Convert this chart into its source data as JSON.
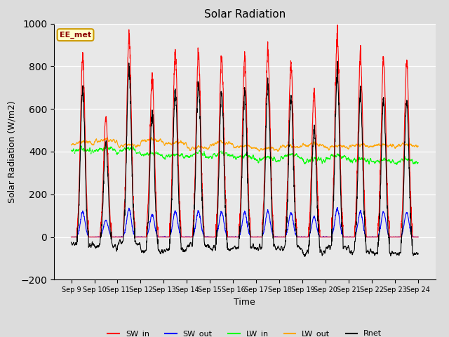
{
  "title": "Solar Radiation",
  "xlabel": "Time",
  "ylabel": "Solar Radiation (W/m2)",
  "ylim": [
    -200,
    1000
  ],
  "yticks": [
    -200,
    0,
    200,
    400,
    600,
    800,
    1000
  ],
  "legend_labels": [
    "SW_in",
    "SW_out",
    "LW_in",
    "LW_out",
    "Rnet"
  ],
  "legend_colors": [
    "red",
    "blue",
    "lime",
    "orange",
    "black"
  ],
  "annotation_text": "EE_met",
  "xtick_labels": [
    "Sep 9",
    "Sep 10",
    "Sep 11",
    "Sep 12",
    "Sep 13",
    "Sep 14",
    "Sep 15",
    "Sep 16",
    "Sep 17",
    "Sep 18",
    "Sep 19",
    "Sep 20",
    "Sep 21",
    "Sep 22",
    "Sep 23",
    "Sep 24"
  ],
  "background_color": "#dcdcdc",
  "n_days": 15,
  "start_day": 9,
  "sw_peaks": [
    840,
    560,
    940,
    750,
    870,
    860,
    840,
    840,
    870,
    810,
    670,
    940,
    850,
    840,
    820
  ],
  "lw_in_base": 390,
  "lw_out_base": 440
}
